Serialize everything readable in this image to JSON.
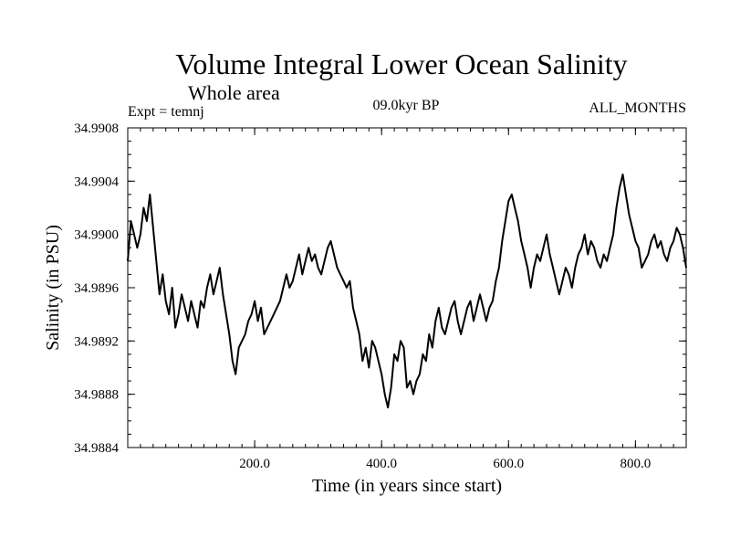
{
  "header": {
    "title": "Volume Integral Lower Ocean Salinity",
    "subtitle": "Whole area",
    "experiment": "Expt = temnj",
    "period": "09.0kyr BP",
    "months": "ALL_MONTHS"
  },
  "chart_data": {
    "type": "line",
    "title": "Volume Integral Lower Ocean Salinity",
    "xlabel": "Time (in years since start)",
    "ylabel": "Salinity (in PSU)",
    "xlim": [
      0,
      880
    ],
    "ylim": [
      34.9884,
      34.9908
    ],
    "xticks": [
      200,
      400,
      600,
      800
    ],
    "xtick_labels": [
      "200.0",
      "400.0",
      "600.0",
      "800.0"
    ],
    "yticks": [
      34.9884,
      34.9888,
      34.9892,
      34.9896,
      34.99,
      34.9904,
      34.9908
    ],
    "ytick_labels": [
      "34.9884",
      "34.9888",
      "34.9892",
      "34.9896",
      "34.9900",
      "34.9904",
      "34.9908"
    ],
    "grid": false,
    "series": [
      {
        "name": "Salinity",
        "x": [
          0,
          5,
          10,
          15,
          20,
          25,
          30,
          35,
          40,
          45,
          50,
          55,
          60,
          65,
          70,
          75,
          80,
          85,
          90,
          95,
          100,
          105,
          110,
          115,
          120,
          125,
          130,
          135,
          140,
          145,
          150,
          155,
          160,
          165,
          170,
          175,
          180,
          185,
          190,
          195,
          200,
          205,
          210,
          215,
          220,
          225,
          230,
          235,
          240,
          245,
          250,
          255,
          260,
          265,
          270,
          275,
          280,
          285,
          290,
          295,
          300,
          305,
          310,
          315,
          320,
          325,
          330,
          335,
          340,
          345,
          350,
          355,
          360,
          365,
          370,
          375,
          380,
          385,
          390,
          395,
          400,
          405,
          410,
          415,
          420,
          425,
          430,
          435,
          440,
          445,
          450,
          455,
          460,
          465,
          470,
          475,
          480,
          485,
          490,
          495,
          500,
          505,
          510,
          515,
          520,
          525,
          530,
          535,
          540,
          545,
          550,
          555,
          560,
          565,
          570,
          575,
          580,
          585,
          590,
          595,
          600,
          605,
          610,
          615,
          620,
          625,
          630,
          635,
          640,
          645,
          650,
          655,
          660,
          665,
          670,
          675,
          680,
          685,
          690,
          695,
          700,
          705,
          710,
          715,
          720,
          725,
          730,
          735,
          740,
          745,
          750,
          755,
          760,
          765,
          770,
          775,
          780,
          785,
          790,
          795,
          800,
          805,
          810,
          815,
          820,
          825,
          830,
          835,
          840,
          845,
          850,
          855,
          860,
          865,
          870,
          875,
          880
        ],
        "values": [
          34.9898,
          34.9901,
          34.99,
          34.9899,
          34.99,
          34.9902,
          34.9901,
          34.9903,
          34.99005,
          34.9898,
          34.98955,
          34.9897,
          34.9895,
          34.9894,
          34.9896,
          34.9893,
          34.9894,
          34.98955,
          34.98945,
          34.98935,
          34.9895,
          34.9894,
          34.9893,
          34.9895,
          34.98945,
          34.9896,
          34.9897,
          34.98955,
          34.98965,
          34.98975,
          34.98955,
          34.9894,
          34.98925,
          34.98905,
          34.98895,
          34.98915,
          34.9892,
          34.98925,
          34.98935,
          34.9894,
          34.9895,
          34.98935,
          34.98945,
          34.98925,
          34.9893,
          34.98935,
          34.9894,
          34.98945,
          34.9895,
          34.9896,
          34.9897,
          34.9896,
          34.98965,
          34.98975,
          34.98985,
          34.9897,
          34.9898,
          34.9899,
          34.9898,
          34.98985,
          34.98975,
          34.9897,
          34.9898,
          34.9899,
          34.98995,
          34.98985,
          34.98975,
          34.9897,
          34.98965,
          34.9896,
          34.98965,
          34.98945,
          34.98935,
          34.98925,
          34.98905,
          34.98915,
          34.989,
          34.9892,
          34.98915,
          34.98905,
          34.98895,
          34.9888,
          34.9887,
          34.98885,
          34.9891,
          34.98905,
          34.9892,
          34.98915,
          34.98885,
          34.9889,
          34.9888,
          34.9889,
          34.98895,
          34.9891,
          34.98905,
          34.98925,
          34.98915,
          34.98935,
          34.98945,
          34.9893,
          34.98925,
          34.98935,
          34.98945,
          34.9895,
          34.98935,
          34.98925,
          34.98935,
          34.98945,
          34.9895,
          34.98935,
          34.98945,
          34.98955,
          34.98945,
          34.98935,
          34.98945,
          34.9895,
          34.98965,
          34.98975,
          34.98995,
          34.9901,
          34.99025,
          34.9903,
          34.9902,
          34.9901,
          34.98995,
          34.98985,
          34.98975,
          34.9896,
          34.98975,
          34.98985,
          34.9898,
          34.9899,
          34.99,
          34.98985,
          34.98975,
          34.98965,
          34.98955,
          34.98965,
          34.98975,
          34.9897,
          34.9896,
          34.98975,
          34.98985,
          34.9899,
          34.99,
          34.98985,
          34.98995,
          34.9899,
          34.9898,
          34.98975,
          34.98985,
          34.9898,
          34.9899,
          34.99,
          34.9902,
          34.99035,
          34.99045,
          34.9903,
          34.99015,
          34.99005,
          34.98995,
          34.9899,
          34.98975,
          34.9898,
          34.98985,
          34.98995,
          34.99,
          34.9899,
          34.98995,
          34.98985,
          34.9898,
          34.9899,
          34.98995,
          34.99005,
          34.99,
          34.9899,
          34.98975
        ]
      }
    ]
  }
}
